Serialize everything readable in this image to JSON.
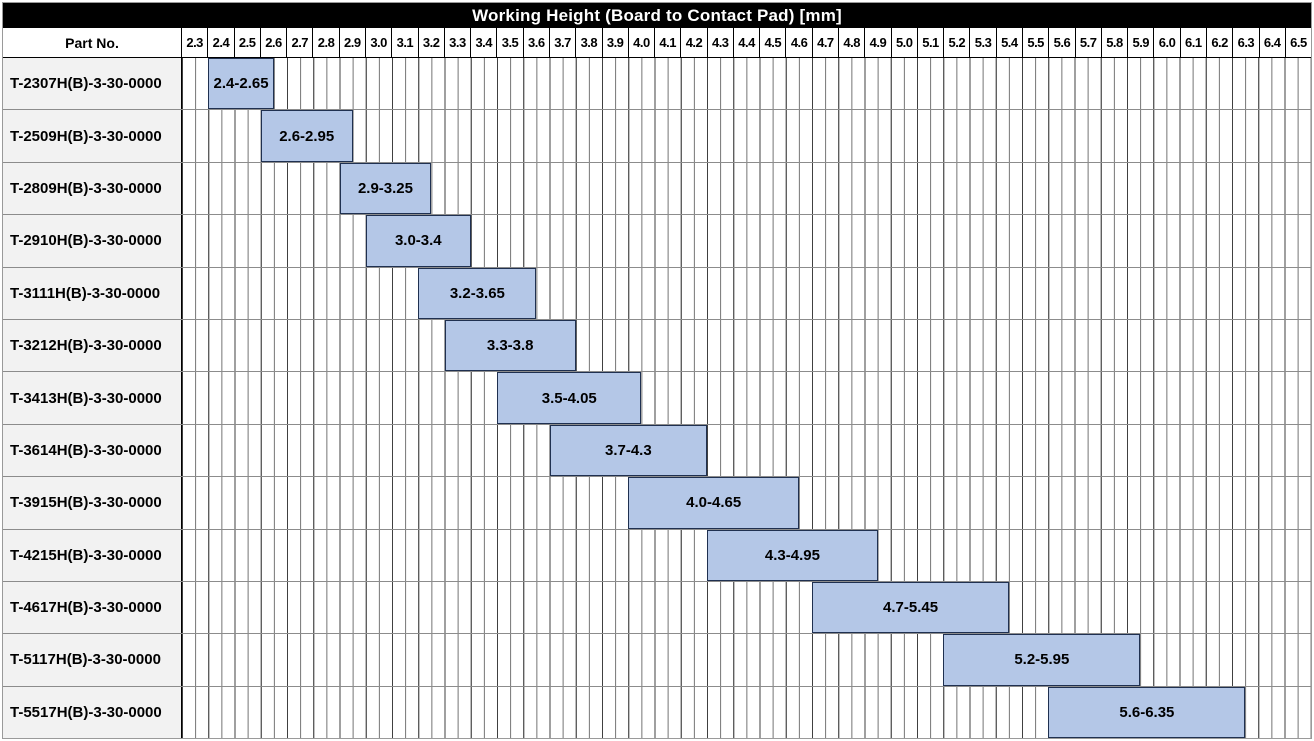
{
  "title": "Working Height (Board to Contact Pad) [mm]",
  "header": {
    "part_no_label": "Part No."
  },
  "colors": {
    "title_bg": "#000000",
    "title_fg": "#ffffff",
    "header_bg": "#ffffff",
    "label_col_bg": "#f2f2f2",
    "grid_strong": "#3f3f3f",
    "grid_weak": "#707070",
    "row_separator": "#8c8c8c",
    "outer_border": "#9a9a9a",
    "bar_fill": "#b4c7e7",
    "bar_border": "#1f3050",
    "text_color": "#000000"
  },
  "chart_data": {
    "type": "bar",
    "orientation": "horizontal-range",
    "title": "Working Height (Board to Contact Pad) [mm]",
    "xlim": [
      2.3,
      6.6
    ],
    "tick_step": 0.1,
    "grid": true,
    "legend": "none",
    "xtick_labels": [
      "2.3",
      "2.4",
      "2.5",
      "2.6",
      "2.7",
      "2.8",
      "2.9",
      "3.0",
      "3.1",
      "3.2",
      "3.3",
      "3.4",
      "3.5",
      "3.6",
      "3.7",
      "3.8",
      "3.9",
      "4.0",
      "4.1",
      "4.2",
      "4.3",
      "4.4",
      "4.5",
      "4.6",
      "4.7",
      "4.8",
      "4.9",
      "5.0",
      "5.1",
      "5.2",
      "5.3",
      "5.4",
      "5.5",
      "5.6",
      "5.7",
      "5.8",
      "5.9",
      "6.0",
      "6.1",
      "6.2",
      "6.3",
      "6.4",
      "6.5"
    ],
    "categories": [
      "T-2307H(B)-3-30-0000",
      "T-2509H(B)-3-30-0000",
      "T-2809H(B)-3-30-0000",
      "T-2910H(B)-3-30-0000",
      "T-3111H(B)-3-30-0000",
      "T-3212H(B)-3-30-0000",
      "T-3413H(B)-3-30-0000",
      "T-3614H(B)-3-30-0000",
      "T-3915H(B)-3-30-0000",
      "T-4215H(B)-3-30-0000",
      "T-4617H(B)-3-30-0000",
      "T-5117H(B)-3-30-0000",
      "T-5517H(B)-3-30-0000"
    ],
    "ranges": [
      [
        2.4,
        2.65
      ],
      [
        2.6,
        2.95
      ],
      [
        2.9,
        3.25
      ],
      [
        3.0,
        3.4
      ],
      [
        3.2,
        3.65
      ],
      [
        3.3,
        3.8
      ],
      [
        3.5,
        4.05
      ],
      [
        3.7,
        4.3
      ],
      [
        4.0,
        4.65
      ],
      [
        4.3,
        4.95
      ],
      [
        4.7,
        5.45
      ],
      [
        5.2,
        5.95
      ],
      [
        5.6,
        6.35
      ]
    ],
    "range_labels": [
      "2.4-2.65",
      "2.6-2.95",
      "2.9-3.25",
      "3.0-3.4",
      "3.2-3.65",
      "3.3-3.8",
      "3.5-4.05",
      "3.7-4.3",
      "4.0-4.65",
      "4.3-4.95",
      "4.7-5.45",
      "5.2-5.95",
      "5.6-6.35"
    ]
  }
}
